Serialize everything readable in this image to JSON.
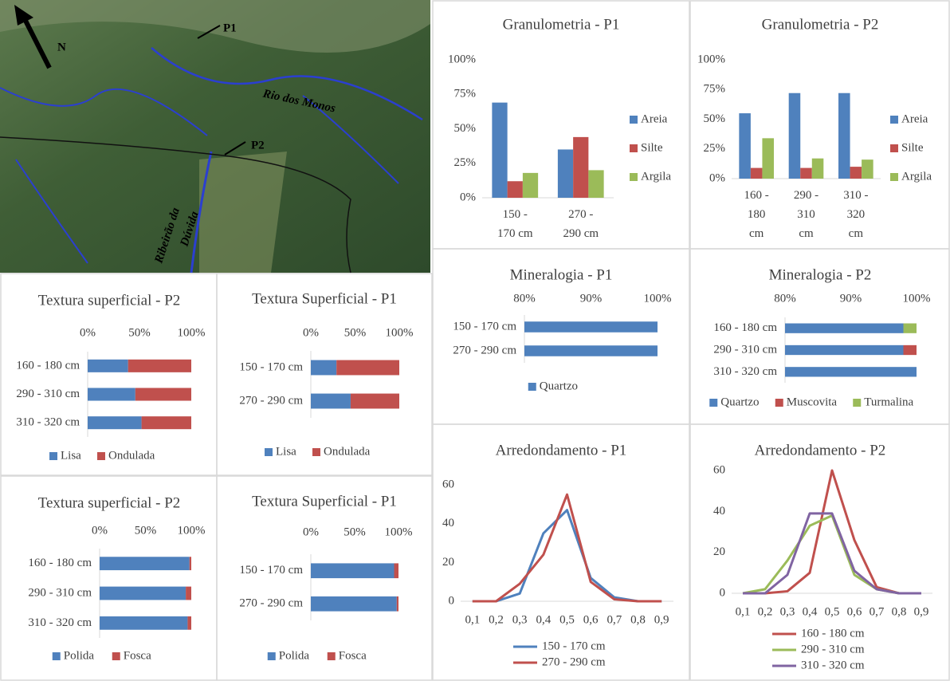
{
  "map_labels": {
    "north": "N",
    "p1": "P1",
    "p2": "P2",
    "river1": "Rio dos Monos",
    "river2": "Ribeirão da Dúvida"
  },
  "chart_data": [
    {
      "type": "bar",
      "title": "Granulometria - P1",
      "categories": [
        "150 - 170 cm",
        "270 - 290 cm"
      ],
      "series": [
        {
          "name": "Areia",
          "color": "#4f81bd",
          "values": [
            69,
            35
          ]
        },
        {
          "name": "Silte",
          "color": "#c0504d",
          "values": [
            12,
            44
          ]
        },
        {
          "name": "Argila",
          "color": "#9bbb59",
          "values": [
            18,
            20
          ]
        }
      ],
      "ylim": [
        0,
        100
      ],
      "yticks": [
        {
          "value": 0,
          "label": "0%"
        },
        {
          "value": 25,
          "label": "25%"
        },
        {
          "value": 50,
          "label": "50%"
        },
        {
          "value": 75,
          "label": "75%"
        },
        {
          "value": 100,
          "label": "100%"
        }
      ],
      "legend": "right"
    },
    {
      "type": "bar",
      "title": "Granulometria - P2",
      "categories": [
        "160 - 180 cm",
        "290 - 310 cm",
        "310 - 320 cm"
      ],
      "series": [
        {
          "name": "Areia",
          "color": "#4f81bd",
          "values": [
            55,
            72,
            72
          ]
        },
        {
          "name": "Silte",
          "color": "#c0504d",
          "values": [
            9,
            9,
            10
          ]
        },
        {
          "name": "Argila",
          "color": "#9bbb59",
          "values": [
            34,
            17,
            16
          ]
        }
      ],
      "ylim": [
        0,
        100
      ],
      "yticks": [
        {
          "value": 0,
          "label": "0%"
        },
        {
          "value": 25,
          "label": "25%"
        },
        {
          "value": 50,
          "label": "50%"
        },
        {
          "value": 75,
          "label": "75%"
        },
        {
          "value": 100,
          "label": "100%"
        }
      ],
      "legend": "right"
    },
    {
      "type": "hbar",
      "title": "Mineralogia  - P1",
      "categories": [
        "150 - 170 cm",
        "270 - 290 cm"
      ],
      "series": [
        {
          "name": "Quartzo",
          "color": "#4f81bd",
          "values": [
            100,
            100
          ]
        }
      ],
      "xlim": [
        80,
        100
      ],
      "xticks": [
        {
          "value": 80,
          "label": "80%"
        },
        {
          "value": 90,
          "label": "90%"
        },
        {
          "value": 100,
          "label": "100%"
        }
      ],
      "legend": "bottom"
    },
    {
      "type": "hbar",
      "title": "Mineralogia  - P2",
      "categories": [
        "160 - 180 cm",
        "290 - 310 cm",
        "310 - 320 cm"
      ],
      "series": [
        {
          "name": "Quartzo",
          "color": "#4f81bd",
          "values": [
            98,
            98,
            100
          ]
        },
        {
          "name": "Muscovita",
          "color": "#c0504d",
          "values": [
            0,
            2,
            0
          ]
        },
        {
          "name": "Turmalina",
          "color": "#9bbb59",
          "values": [
            2,
            0,
            0
          ]
        }
      ],
      "xlim": [
        80,
        100
      ],
      "xticks": [
        {
          "value": 80,
          "label": "80%"
        },
        {
          "value": 90,
          "label": "90%"
        },
        {
          "value": 100,
          "label": "100%"
        }
      ],
      "legend": "bottom"
    },
    {
      "type": "hbar",
      "title": "Textura superficial - P2",
      "categories": [
        "160 - 180 cm",
        "290 - 310 cm",
        "310 - 320 cm"
      ],
      "series": [
        {
          "name": "Lisa",
          "color": "#4f81bd",
          "values": [
            39,
            46,
            52
          ]
        },
        {
          "name": "Ondulada",
          "color": "#c0504d",
          "values": [
            61,
            54,
            48
          ]
        }
      ],
      "xlim": [
        0,
        100
      ],
      "xticks": [
        {
          "value": 0,
          "label": "0%"
        },
        {
          "value": 50,
          "label": "50%"
        },
        {
          "value": 100,
          "label": "100%"
        }
      ],
      "legend": "bottom"
    },
    {
      "type": "hbar",
      "title": "Textura Superficial - P1",
      "categories": [
        "150 - 170 cm",
        "270 - 290 cm"
      ],
      "series": [
        {
          "name": "Lisa",
          "color": "#4f81bd",
          "values": [
            29,
            45
          ]
        },
        {
          "name": "Ondulada",
          "color": "#c0504d",
          "values": [
            71,
            55
          ]
        }
      ],
      "xlim": [
        0,
        100
      ],
      "xticks": [
        {
          "value": 0,
          "label": "0%"
        },
        {
          "value": 50,
          "label": "50%"
        },
        {
          "value": 100,
          "label": "100%"
        }
      ],
      "legend": "bottom"
    },
    {
      "type": "hbar",
      "title": "Textura superficial - P2",
      "categories": [
        "160 - 180 cm",
        "290 - 310 cm",
        "310 - 320 cm"
      ],
      "series": [
        {
          "name": "Polida",
          "color": "#4f81bd",
          "values": [
            98,
            94,
            96
          ]
        },
        {
          "name": "Fosca",
          "color": "#c0504d",
          "values": [
            2,
            6,
            4
          ]
        }
      ],
      "xlim": [
        0,
        100
      ],
      "xticks": [
        {
          "value": 0,
          "label": "0%"
        },
        {
          "value": 50,
          "label": "50%"
        },
        {
          "value": 100,
          "label": "100%"
        }
      ],
      "legend": "bottom"
    },
    {
      "type": "hbar",
      "title": "Textura Superficial - P1",
      "categories": [
        "150 - 170 cm",
        "270 - 290 cm"
      ],
      "series": [
        {
          "name": "Polida",
          "color": "#4f81bd",
          "values": [
            95,
            98
          ]
        },
        {
          "name": "Fosca",
          "color": "#c0504d",
          "values": [
            5,
            2
          ]
        }
      ],
      "xlim": [
        0,
        100
      ],
      "xticks": [
        {
          "value": 0,
          "label": "0%"
        },
        {
          "value": 50,
          "label": "50%"
        },
        {
          "value": 100,
          "label": "100%"
        }
      ],
      "legend": "bottom"
    },
    {
      "type": "line",
      "title": "Arredondamento - P1",
      "categories": [
        "0,1",
        "0,2",
        "0,3",
        "0,4",
        "0,5",
        "0,6",
        "0,7",
        "0,8",
        "0,9"
      ],
      "series": [
        {
          "name": "150 - 170 cm",
          "color": "#4f81bd",
          "values": [
            0,
            0,
            4,
            35,
            47,
            12,
            2,
            0,
            0
          ]
        },
        {
          "name": "270 - 290 cm",
          "color": "#c0504d",
          "values": [
            0,
            0,
            9,
            24,
            55,
            10,
            1,
            0,
            0
          ]
        }
      ],
      "ylim": [
        0,
        60
      ],
      "yticks": [
        0,
        20,
        40,
        60
      ],
      "legend": "bottom"
    },
    {
      "type": "line",
      "title": "Arredondamento - P2",
      "categories": [
        "0,1",
        "0,2",
        "0,3",
        "0,4",
        "0,5",
        "0,6",
        "0,7",
        "0,8",
        "0,9"
      ],
      "series": [
        {
          "name": "160 - 180 cm",
          "color": "#c0504d",
          "values": [
            0,
            0,
            1,
            10,
            60,
            26,
            3,
            0,
            0
          ]
        },
        {
          "name": "290 - 310 cm",
          "color": "#9bbb59",
          "values": [
            0,
            2,
            16,
            33,
            38,
            9,
            2,
            0,
            0
          ]
        },
        {
          "name": "310 - 320 cm",
          "color": "#8064a2",
          "values": [
            0,
            0,
            9,
            39,
            39,
            11,
            2,
            0,
            0
          ]
        }
      ],
      "ylim": [
        0,
        60
      ],
      "yticks": [
        0,
        20,
        40,
        60
      ],
      "legend": "bottom"
    }
  ]
}
